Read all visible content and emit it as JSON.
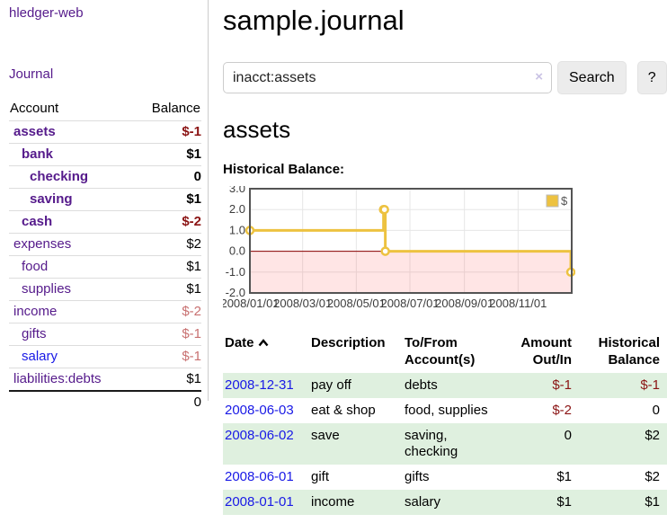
{
  "app": {
    "brand": "hledger-web",
    "nav": [
      {
        "label": "Journal"
      }
    ]
  },
  "colors": {
    "link_purple": "#551a8b",
    "link_blue": "#1919e6",
    "negative_strong": "#8b1414",
    "negative_soft": "#c87070",
    "row_highlight_green": "#dff0df",
    "chart_series_gold": "#edc240"
  },
  "sidebar": {
    "columns": {
      "account": "Account",
      "balance": "Balance"
    },
    "accounts": [
      {
        "name": "assets",
        "indent": 1,
        "bold": true,
        "balance": "$-1",
        "balance_style": "neg-strong",
        "link_color": "purple"
      },
      {
        "name": "bank",
        "indent": 2,
        "bold": true,
        "balance": "$1",
        "balance_style": "pos",
        "link_color": "purple"
      },
      {
        "name": "checking",
        "indent": 3,
        "bold": true,
        "balance": "0",
        "balance_style": "pos",
        "link_color": "purple"
      },
      {
        "name": "saving",
        "indent": 3,
        "bold": true,
        "balance": "$1",
        "balance_style": "pos",
        "link_color": "purple"
      },
      {
        "name": "cash",
        "indent": 2,
        "bold": true,
        "balance": "$-2",
        "balance_style": "neg-strong",
        "link_color": "purple"
      },
      {
        "name": "expenses",
        "indent": 1,
        "bold": false,
        "balance": "$2",
        "balance_style": "pos",
        "link_color": "purple"
      },
      {
        "name": "food",
        "indent": 2,
        "bold": false,
        "balance": "$1",
        "balance_style": "pos",
        "link_color": "purple"
      },
      {
        "name": "supplies",
        "indent": 2,
        "bold": false,
        "balance": "$1",
        "balance_style": "pos",
        "link_color": "purple"
      },
      {
        "name": "income",
        "indent": 1,
        "bold": false,
        "balance": "$-2",
        "balance_style": "neg-soft",
        "link_color": "purple"
      },
      {
        "name": "gifts",
        "indent": 2,
        "bold": false,
        "balance": "$-1",
        "balance_style": "neg-soft",
        "link_color": "purple"
      },
      {
        "name": "salary",
        "indent": 2,
        "bold": false,
        "balance": "$-1",
        "balance_style": "neg-soft",
        "link_color": "blue"
      },
      {
        "name": "liabilities:debts",
        "indent": 1,
        "bold": false,
        "balance": "$1",
        "balance_style": "pos",
        "link_color": "purple"
      }
    ],
    "total": "0"
  },
  "main": {
    "journal_title": "sample.journal",
    "search": {
      "value": "inacct:assets",
      "clear_icon": "×",
      "search_button": "Search",
      "help_button": "?"
    },
    "account_title": "assets",
    "chart_heading": "Historical Balance:"
  },
  "chart_data": {
    "type": "line",
    "title": "Historical Balance:",
    "x_axis": {
      "tick_labels": [
        "2008/01/01",
        "2008/03/01",
        "2008/05/01",
        "2008/07/01",
        "2008/09/01",
        "2008/11/01"
      ],
      "tick_day_offsets": [
        0,
        60,
        121,
        182,
        244,
        305
      ],
      "range_day_offsets": [
        0,
        366
      ],
      "range_dates": [
        "2008/01/01",
        "2009/01/01"
      ]
    },
    "y_axis": {
      "tick_labels": [
        "3.0",
        "2.0",
        "1.0",
        "0.0",
        "-1.0",
        "-2.0"
      ],
      "tick_values": [
        3,
        2,
        1,
        0,
        -1,
        -2
      ],
      "range": [
        -2,
        3
      ]
    },
    "legend": {
      "position": "top-right",
      "entries": [
        {
          "label": "$",
          "color": "#edc240"
        }
      ]
    },
    "series": [
      {
        "name": "$",
        "color": "#edc240",
        "type": "step-line",
        "points": [
          {
            "date": "2008-01-01",
            "day": 0,
            "value": 1
          },
          {
            "date": "2008-06-01",
            "day": 152,
            "value": 2
          },
          {
            "date": "2008-06-02",
            "day": 153,
            "value": 2
          },
          {
            "date": "2008-06-03",
            "day": 154,
            "value": 0
          },
          {
            "date": "2008-12-31",
            "day": 365,
            "value": -1
          }
        ]
      }
    ],
    "grid": {
      "on": true,
      "border_color": "#545454",
      "gridline_color": "#e6e6e6"
    },
    "annotations": {
      "zero_line_color": "#8b0000",
      "negative_region_fill": "rgba(255,70,70,0.14)"
    }
  },
  "register": {
    "columns": [
      {
        "label": "Date",
        "sort": "asc",
        "align": "left"
      },
      {
        "label": "Description",
        "align": "left"
      },
      {
        "label": "To/From Account(s)",
        "align": "left"
      },
      {
        "label": "Amount Out/In",
        "align": "right"
      },
      {
        "label": "Historical Balance",
        "align": "right"
      }
    ],
    "rows": [
      {
        "date": "2008-12-31",
        "description": "pay off",
        "accounts": "debts",
        "amount": "$-1",
        "amount_negative": true,
        "balance": "$-1",
        "balance_negative": true
      },
      {
        "date": "2008-06-03",
        "description": "eat & shop",
        "accounts": "food, supplies",
        "amount": "$-2",
        "amount_negative": true,
        "balance": "0",
        "balance_negative": false
      },
      {
        "date": "2008-06-02",
        "description": "save",
        "accounts": "saving, checking",
        "amount": "0",
        "amount_negative": false,
        "balance": "$2",
        "balance_negative": false
      },
      {
        "date": "2008-06-01",
        "description": "gift",
        "accounts": "gifts",
        "amount": "$1",
        "amount_negative": false,
        "balance": "$2",
        "balance_negative": false
      },
      {
        "date": "2008-01-01",
        "description": "income",
        "accounts": "salary",
        "amount": "$1",
        "amount_negative": false,
        "balance": "$1",
        "balance_negative": false
      }
    ]
  }
}
